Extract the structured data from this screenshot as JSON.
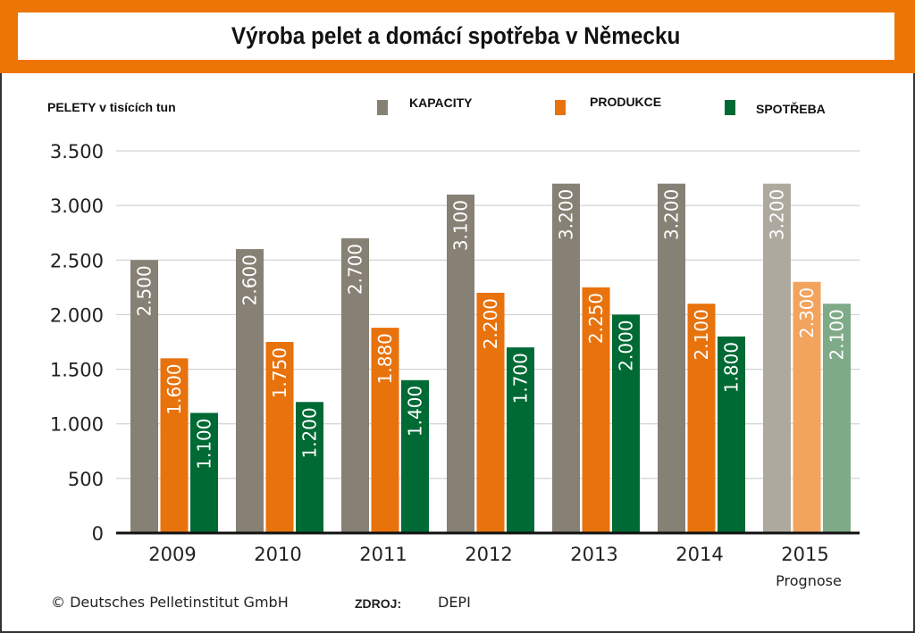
{
  "chart_data": {
    "type": "bar",
    "title": "Výroba pelet a domácí spotřeba v Německu",
    "ylabel": "PELETY v tisících tun",
    "categories": [
      "2009",
      "2010",
      "2011",
      "2012",
      "2013",
      "2014",
      "2015"
    ],
    "category_note": {
      "2015": "Prognose"
    },
    "ylim": [
      0,
      3500
    ],
    "yticks": [
      0,
      500,
      1000,
      1500,
      2000,
      2500,
      3000,
      3500
    ],
    "ytick_labels": [
      "0",
      "500",
      "1.000",
      "1.500",
      "2.000",
      "2.500",
      "3.000",
      "3.500"
    ],
    "grid": true,
    "legend": "top",
    "series": [
      {
        "name": "KAPACITY",
        "color": "#878075",
        "forecast_color": "#aea99f",
        "values": [
          2500,
          2600,
          2700,
          3100,
          3200,
          3200,
          3200
        ]
      },
      {
        "name": "PRODUKCE",
        "color": "#e8720c",
        "forecast_color": "#f2a35c",
        "values": [
          1600,
          1750,
          1880,
          2200,
          2250,
          2100,
          2300
        ]
      },
      {
        "name": "SPOTŘEBA",
        "color": "#006a35",
        "forecast_color": "#7eaa88",
        "values": [
          1100,
          1200,
          1400,
          1700,
          2000,
          1800,
          2100
        ]
      }
    ]
  },
  "footer": {
    "copyright": "© Deutsches Pelletinstitut GmbH",
    "source_label": "ZDROJ:",
    "source": "DEPI"
  }
}
